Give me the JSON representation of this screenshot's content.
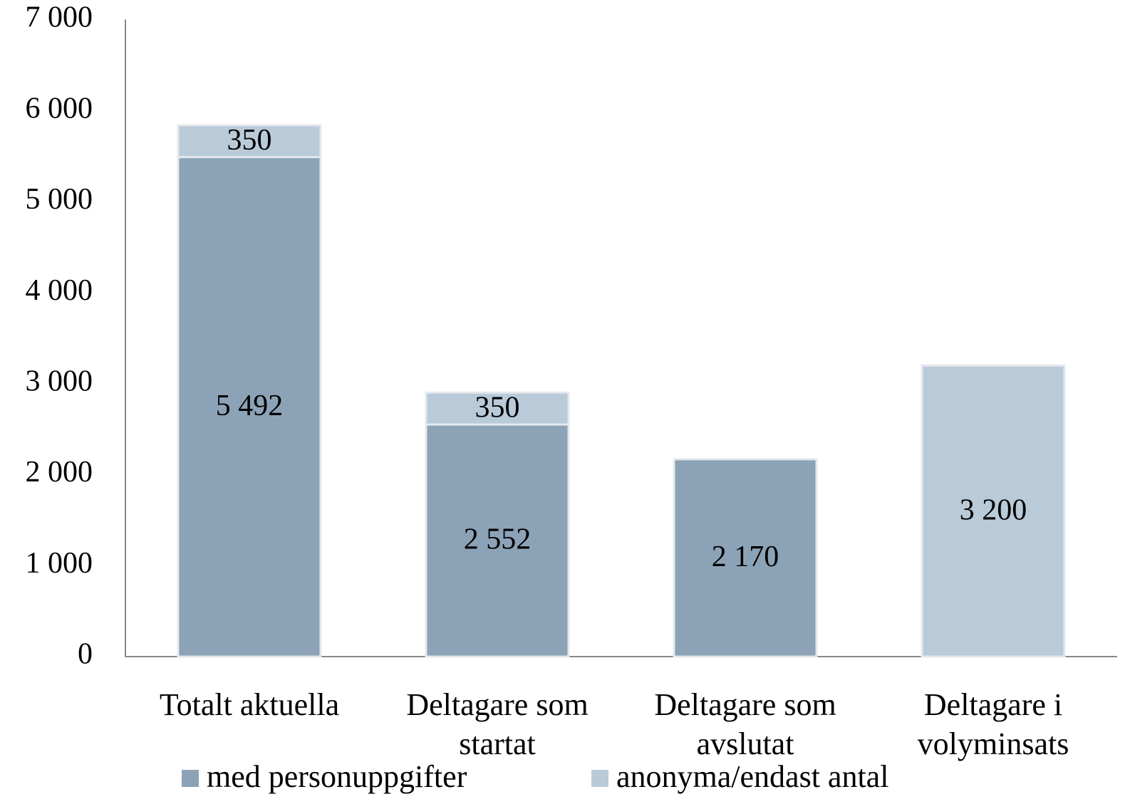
{
  "chart_data": {
    "type": "stacked-bar",
    "categories": [
      "Totalt aktuella",
      "Deltagare som startat",
      "Deltagare som avslutat",
      "Deltagare i volyminsats"
    ],
    "series": [
      {
        "name": "med personuppgifter",
        "color": "#8ca3b7",
        "values": [
          5492,
          2552,
          2170,
          null
        ],
        "value_labels": [
          "5 492",
          "2 552",
          "2 170",
          null
        ]
      },
      {
        "name": "anonyma/endast antal",
        "color": "#b9cad9",
        "values": [
          350,
          350,
          null,
          3200
        ],
        "value_labels": [
          "350",
          "350",
          null,
          "3 200"
        ]
      }
    ],
    "ylim": [
      0,
      7000
    ],
    "yticks": [
      0,
      {
        "value": 1000,
        "label": "1 000"
      },
      {
        "value": 2000,
        "label": "2 000"
      },
      {
        "value": 3000,
        "label": "3 000"
      },
      {
        "value": 4000,
        "label": "4 000"
      },
      {
        "value": 5000,
        "label": "5 000"
      },
      {
        "value": 6000,
        "label": "6 000"
      },
      {
        "value": 7000,
        "label": "7 000"
      }
    ],
    "legend": "bottom"
  }
}
